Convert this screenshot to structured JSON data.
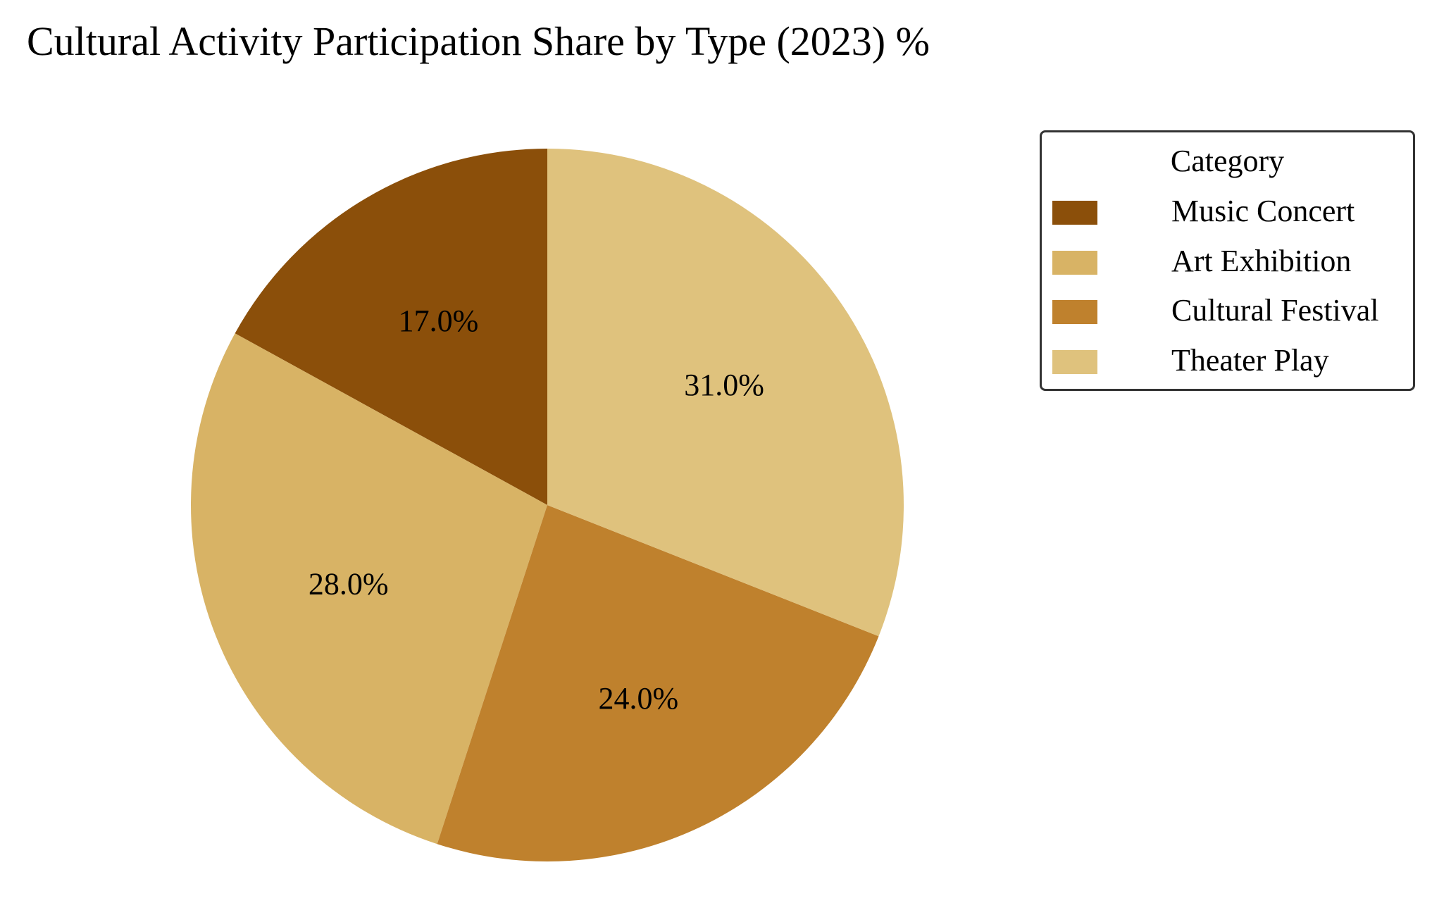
{
  "chart_data": {
    "type": "pie",
    "title": "Cultural Activity Participation Share by Type (2023) %",
    "legend_title": "Category",
    "legend_position": "right",
    "start_angle_deg": 90,
    "direction": "counterclockwise",
    "slices": [
      {
        "label": "Music Concert",
        "value": 17.0,
        "display": "17.0%",
        "color": "#8B4F0A"
      },
      {
        "label": "Art Exhibition",
        "value": 28.0,
        "display": "28.0%",
        "color": "#D8B365"
      },
      {
        "label": "Cultural Festival",
        "value": 24.0,
        "display": "24.0%",
        "color": "#BF812D"
      },
      {
        "label": "Theater Play",
        "value": 31.0,
        "display": "31.0%",
        "color": "#DFC27D"
      }
    ]
  }
}
